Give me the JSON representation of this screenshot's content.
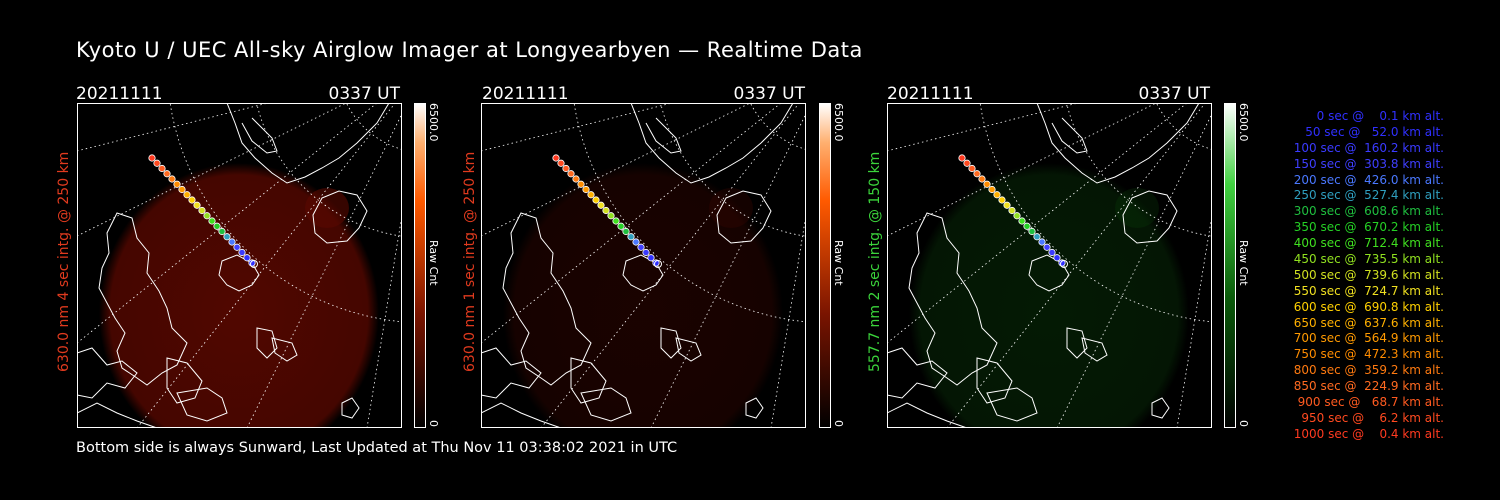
{
  "title": "Kyoto U / UEC All-sky Airglow Imager at Longyearbyen — Realtime Data",
  "footer": "Bottom side is always Sunward, Last Updated at Thu Nov 11 03:38:02 2021 in UTC",
  "panels": [
    {
      "date": "20211111",
      "time": "0337 UT",
      "side_label": "630.0 nm 4 sec intg. @ 250 km",
      "label_color": "#e03a1e",
      "cb_max": "6500.0",
      "cb_unit": "Raw Cnt",
      "cb_min": "0"
    },
    {
      "date": "20211111",
      "time": "0337 UT",
      "side_label": "630.0 nm 1 sec intg. @ 250 km",
      "label_color": "#e03a1e",
      "cb_max": "6500.0",
      "cb_unit": "Raw Cnt",
      "cb_min": "0"
    },
    {
      "date": "20211111",
      "time": "0337 UT",
      "side_label": "557.7 nm 2 sec intg. @ 150 km",
      "label_color": "#3bd43b",
      "cb_max": "6500.0",
      "cb_unit": "Raw Cnt",
      "cb_min": "0"
    }
  ],
  "trajectory_legend": [
    {
      "text": "   0 sec @    0.1 km alt.",
      "color": "#3030ff"
    },
    {
      "text": "  50 sec @   52.0 km alt.",
      "color": "#3030ff"
    },
    {
      "text": " 100 sec @  160.2 km alt.",
      "color": "#3a3aff"
    },
    {
      "text": " 150 sec @  303.8 km alt.",
      "color": "#3f3fff"
    },
    {
      "text": " 200 sec @  426.0 km alt.",
      "color": "#4a78ff"
    },
    {
      "text": " 250 sec @  527.4 km alt.",
      "color": "#2f9fbf"
    },
    {
      "text": " 300 sec @  608.6 km alt.",
      "color": "#1fbf3f"
    },
    {
      "text": " 350 sec @  670.2 km alt.",
      "color": "#25d025"
    },
    {
      "text": " 400 sec @  712.4 km alt.",
      "color": "#40e020"
    },
    {
      "text": " 450 sec @  735.5 km alt.",
      "color": "#90e020"
    },
    {
      "text": " 500 sec @  739.6 km alt.",
      "color": "#d0e020"
    },
    {
      "text": " 550 sec @  724.7 km alt.",
      "color": "#f0e020"
    },
    {
      "text": " 600 sec @  690.8 km alt.",
      "color": "#ffd000"
    },
    {
      "text": " 650 sec @  637.6 km alt.",
      "color": "#ffb000"
    },
    {
      "text": " 700 sec @  564.9 km alt.",
      "color": "#ff9a00"
    },
    {
      "text": " 750 sec @  472.3 km alt.",
      "color": "#ff8c00"
    },
    {
      "text": " 800 sec @  359.2 km alt.",
      "color": "#ff7a10"
    },
    {
      "text": " 850 sec @  224.9 km alt.",
      "color": "#ff6a20"
    },
    {
      "text": " 900 sec @   68.7 km alt.",
      "color": "#ff5a20"
    },
    {
      "text": " 950 sec @    6.2 km alt.",
      "color": "#ff4a20"
    },
    {
      "text": "1000 sec @    0.4 km alt.",
      "color": "#ff3a20"
    }
  ]
}
